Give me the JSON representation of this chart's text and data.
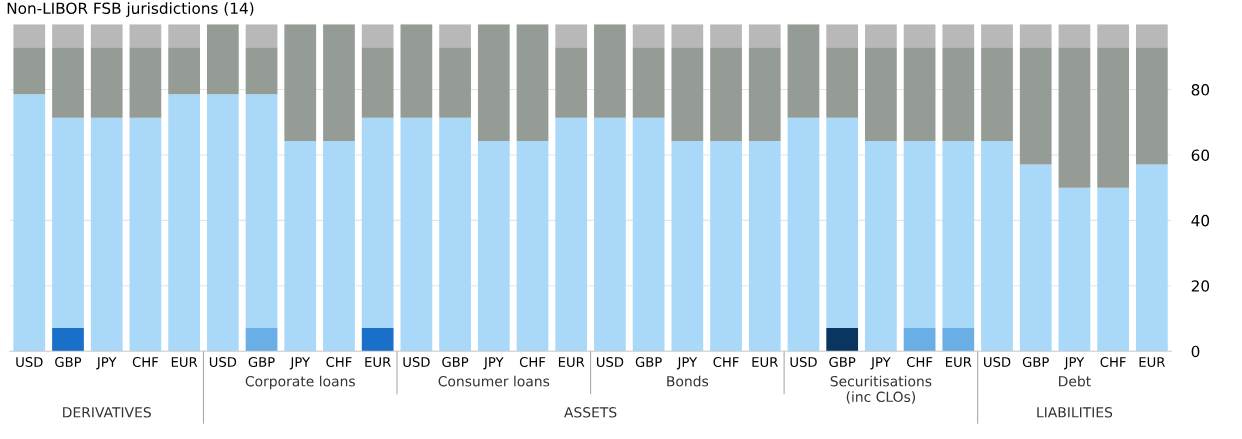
{
  "chart_data": {
    "type": "bar",
    "title": "Non-LIBOR FSB jurisdictions (14)",
    "stacked": true,
    "categories": [
      "USD",
      "GBP",
      "JPY",
      "CHF",
      "EUR",
      "USD",
      "GBP",
      "JPY",
      "CHF",
      "EUR",
      "USD",
      "GBP",
      "JPY",
      "CHF",
      "EUR",
      "USD",
      "GBP",
      "JPY",
      "CHF",
      "EUR",
      "USD",
      "GBP",
      "JPY",
      "CHF",
      "EUR",
      "USD",
      "GBP",
      "JPY",
      "CHF",
      "EUR"
    ],
    "series": [
      {
        "color": "#0a3560",
        "values": [
          null,
          null,
          null,
          null,
          null,
          null,
          null,
          null,
          null,
          null,
          null,
          null,
          null,
          null,
          null,
          null,
          null,
          null,
          null,
          null,
          null,
          7.1,
          null,
          null,
          null,
          null,
          null,
          null,
          null,
          null
        ]
      },
      {
        "color": "#1a70c8",
        "values": [
          null,
          7.1,
          null,
          null,
          null,
          null,
          null,
          null,
          null,
          7.1,
          null,
          null,
          null,
          null,
          null,
          null,
          null,
          null,
          null,
          null,
          null,
          null,
          null,
          null,
          null,
          null,
          null,
          null,
          null,
          null
        ]
      },
      {
        "color": "#6aaee6",
        "values": [
          null,
          null,
          null,
          null,
          null,
          null,
          7.1,
          null,
          null,
          null,
          null,
          null,
          null,
          null,
          null,
          null,
          null,
          null,
          null,
          null,
          null,
          null,
          null,
          7.1,
          7.1,
          null,
          null,
          null,
          null,
          null
        ]
      },
      {
        "color": "#a9d8f8",
        "values": [
          78.6,
          64.3,
          71.4,
          71.4,
          78.6,
          78.6,
          71.5,
          64.3,
          64.3,
          64.3,
          71.4,
          71.4,
          64.3,
          64.3,
          71.4,
          71.4,
          71.4,
          64.3,
          64.3,
          64.3,
          71.4,
          64.3,
          64.3,
          57.2,
          57.2,
          64.3,
          57.1,
          50,
          50,
          57.1
        ]
      },
      {
        "color": "#959b95",
        "values": [
          14.3,
          21.5,
          21.5,
          21.5,
          14.3,
          21.4,
          14.3,
          35.7,
          35.7,
          21.5,
          28.6,
          21.5,
          35.7,
          35.7,
          21.5,
          28.6,
          21.5,
          28.6,
          28.6,
          28.6,
          28.6,
          21.5,
          28.6,
          28.6,
          28.6,
          28.6,
          35.8,
          42.9,
          42.9,
          35.8
        ]
      },
      {
        "color": "#b8b8b8",
        "values": [
          7.1,
          7.1,
          7.1,
          7.1,
          7.1,
          null,
          7.1,
          null,
          null,
          7.1,
          null,
          7.1,
          null,
          null,
          7.1,
          null,
          7.1,
          7.1,
          7.1,
          7.1,
          null,
          7.1,
          7.1,
          7.1,
          7.1,
          7.1,
          7.1,
          7.1,
          7.1,
          7.1
        ]
      }
    ],
    "ylim": [
      0,
      100
    ],
    "yticks": [
      0,
      20,
      40,
      60,
      80
    ],
    "grid": "y",
    "annotations": [
      "Corporate loans",
      "Consumer loans",
      "Bonds",
      "Securitisations\n(inc CLOs)",
      "Debt",
      "DERIVATIVES",
      "ASSETS",
      "LIABILITIES"
    ]
  }
}
